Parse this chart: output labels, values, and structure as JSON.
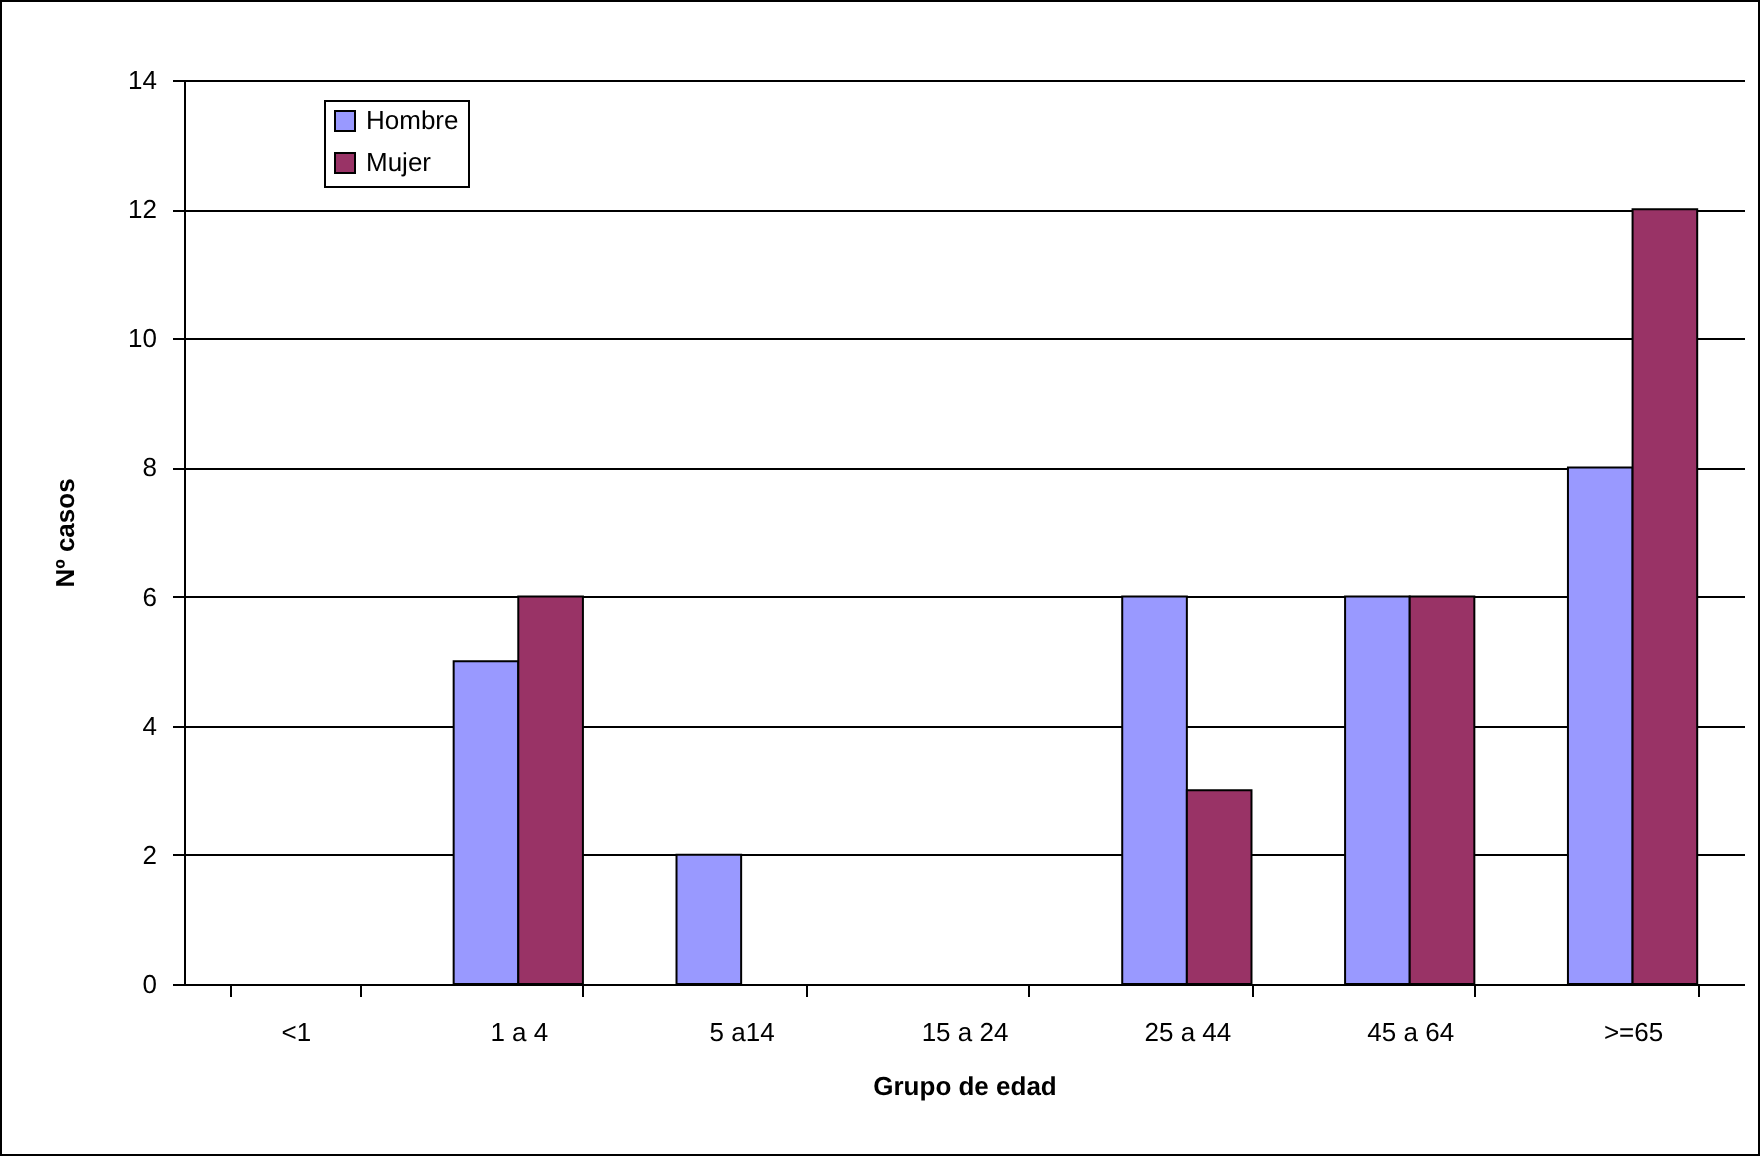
{
  "chart_data": {
    "type": "bar",
    "xlabel": "Grupo de edad",
    "ylabel": "Nº casos",
    "categories": [
      "<1",
      "1 a 4",
      "5 a14",
      "15 a 24",
      "25 a 44",
      "45 a 64",
      ">=65"
    ],
    "series": [
      {
        "name": "Hombre",
        "color": "#9999ff",
        "values": [
          0,
          5,
          2,
          0,
          6,
          6,
          8
        ]
      },
      {
        "name": "Mujer",
        "color": "#993366",
        "values": [
          0,
          6,
          0,
          0,
          3,
          6,
          12
        ]
      }
    ],
    "ylim": [
      0,
      14
    ],
    "yticks": [
      0,
      2,
      4,
      6,
      8,
      10,
      12,
      14
    ],
    "grid": "y",
    "legend": "top left"
  }
}
